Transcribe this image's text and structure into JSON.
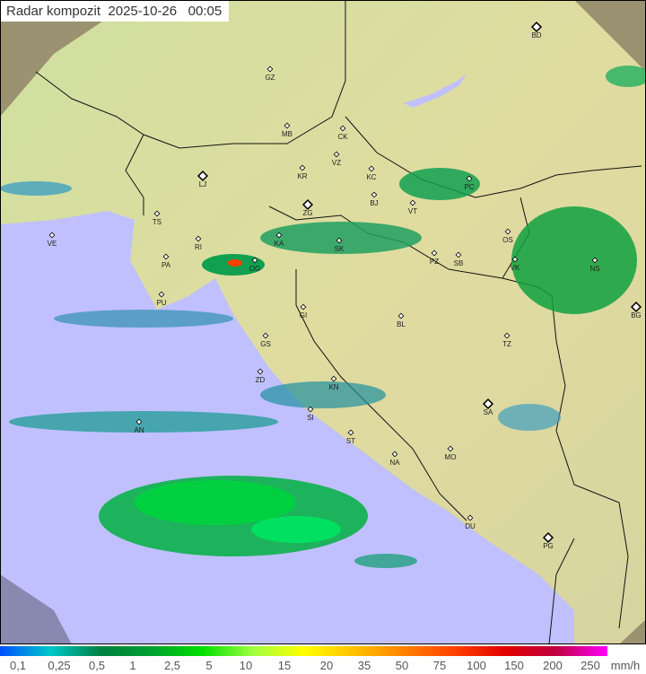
{
  "title": {
    "label": "Radar kompozit",
    "date": "2025-10-26",
    "time": "00:05"
  },
  "legend": {
    "unit": "mm/h",
    "ticks": [
      "0,1",
      "0,25",
      "0,5",
      "1",
      "2,5",
      "5",
      "10",
      "15",
      "20",
      "35",
      "50",
      "75",
      "100",
      "150",
      "200",
      "250"
    ],
    "colors": [
      "#0050ff",
      "#00c8c8",
      "#008040",
      "#00a030",
      "#00e000",
      "#a0ff40",
      "#ffff00",
      "#ffc000",
      "#ff8000",
      "#ff4000",
      "#e00000",
      "#c00040",
      "#ff00ff"
    ]
  },
  "map": {
    "sea_color": "#c0c0ff",
    "land_color": "#d8e0a0",
    "outside_color": "#a09870",
    "cities": [
      "GZ",
      "BD",
      "MB",
      "CK",
      "VZ",
      "KR",
      "KC",
      "LJ",
      "PC",
      "BJ",
      "VT",
      "ZG",
      "TS",
      "VE",
      "RI",
      "KA",
      "SK",
      "OS",
      "PA",
      "OG",
      "PZ",
      "SB",
      "VK",
      "NS",
      "PU",
      "BG",
      "GI",
      "BL",
      "TZ",
      "GS",
      "ZD",
      "KN",
      "SA",
      "SI",
      "AN",
      "ST",
      "MO",
      "NA",
      "DU",
      "PG"
    ]
  }
}
